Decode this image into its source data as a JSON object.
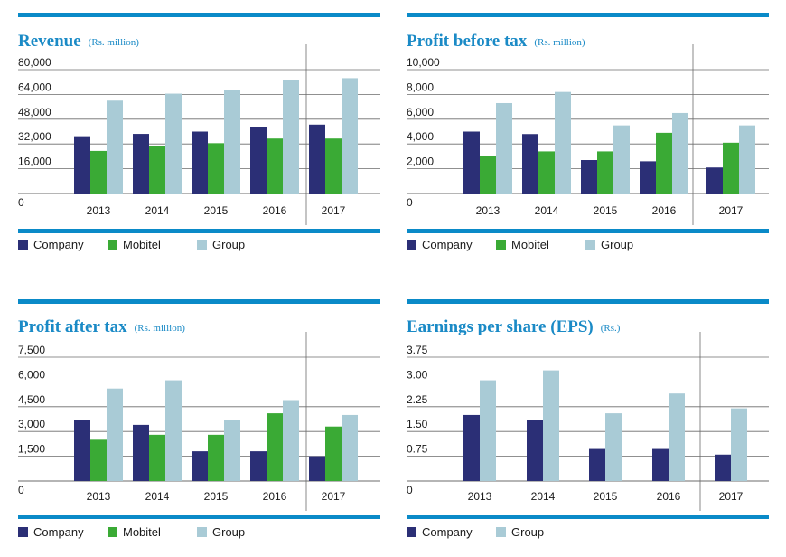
{
  "colors": {
    "accent": "#0a8ac8",
    "company": "#2b2f76",
    "mobitel": "#3aaa35",
    "group": "#a9cbd6",
    "grid": "#6b6b6b",
    "title": "#1a8ac6"
  },
  "chart_data": [
    {
      "type": "bar",
      "title": "Revenue",
      "unit": "(Rs. million)",
      "categories": [
        "2013",
        "2014",
        "2015",
        "2016",
        "2017"
      ],
      "yticks": [
        "0",
        "16,000",
        "32,000",
        "48,000",
        "64,000",
        "80,000"
      ],
      "ylim": [
        0,
        80000
      ],
      "divider_before_last": true,
      "series": [
        {
          "name": "Company",
          "values": [
            37000,
            38500,
            40000,
            43000,
            44500
          ]
        },
        {
          "name": "Mobitel",
          "values": [
            27500,
            30500,
            32500,
            35500,
            35500
          ]
        },
        {
          "name": "Group",
          "values": [
            60000,
            64500,
            67000,
            73000,
            74500
          ]
        }
      ]
    },
    {
      "type": "bar",
      "title": "Profit before tax",
      "unit": "(Rs. million)",
      "categories": [
        "2013",
        "2014",
        "2015",
        "2016",
        "2017"
      ],
      "yticks": [
        "0",
        "2,000",
        "4,000",
        "6,000",
        "8,000",
        "10,000"
      ],
      "ylim": [
        0,
        10000
      ],
      "divider_before_last": true,
      "series": [
        {
          "name": "Company",
          "values": [
            5000,
            4800,
            2700,
            2600,
            2100
          ]
        },
        {
          "name": "Mobitel",
          "values": [
            3000,
            3400,
            3400,
            4900,
            4100
          ]
        },
        {
          "name": "Group",
          "values": [
            7300,
            8200,
            5500,
            6500,
            5500
          ]
        }
      ]
    },
    {
      "type": "bar",
      "title": "Profit after tax",
      "unit": "(Rs. million)",
      "categories": [
        "2013",
        "2014",
        "2015",
        "2016",
        "2017"
      ],
      "yticks": [
        "0",
        "1,500",
        "3,000",
        "4,500",
        "6,000",
        "7,500"
      ],
      "ylim": [
        0,
        7500
      ],
      "divider_before_last": true,
      "series": [
        {
          "name": "Company",
          "values": [
            3700,
            3400,
            1800,
            1800,
            1500
          ]
        },
        {
          "name": "Mobitel",
          "values": [
            2500,
            2800,
            2800,
            4100,
            3300
          ]
        },
        {
          "name": "Group",
          "values": [
            5600,
            6100,
            3700,
            4900,
            4000
          ]
        }
      ]
    },
    {
      "type": "bar",
      "title": "Earnings per share (EPS)",
      "unit": "(Rs.)",
      "categories": [
        "2013",
        "2014",
        "2015",
        "2016",
        "2017"
      ],
      "yticks": [
        "0",
        "0.75",
        "1.50",
        "2.25",
        "3.00",
        "3.75"
      ],
      "ylim": [
        0,
        3.75
      ],
      "divider_before_last": true,
      "series": [
        {
          "name": "Company",
          "values": [
            2.0,
            1.85,
            0.97,
            0.97,
            0.8
          ]
        },
        {
          "name": "Group",
          "values": [
            3.05,
            3.35,
            2.05,
            2.65,
            2.2
          ]
        }
      ]
    }
  ]
}
